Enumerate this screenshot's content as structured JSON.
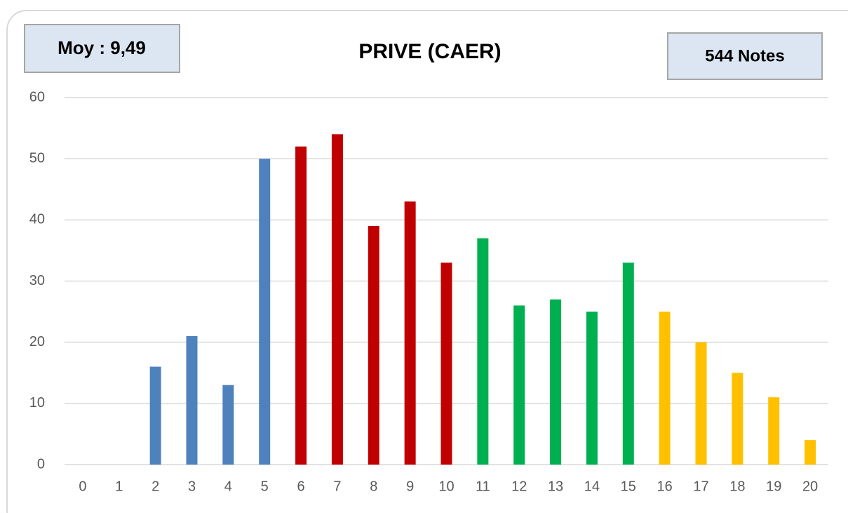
{
  "chart_data": {
    "type": "bar",
    "title": "PRIVE (CAER)",
    "annotations": [
      "Moy : 9,49",
      "544 Notes"
    ],
    "categories": [
      "0",
      "1",
      "2",
      "3",
      "4",
      "5",
      "6",
      "7",
      "8",
      "9",
      "10",
      "11",
      "12",
      "13",
      "14",
      "15",
      "16",
      "17",
      "18",
      "19",
      "20"
    ],
    "values": [
      0,
      0,
      16,
      21,
      13,
      50,
      52,
      54,
      39,
      43,
      33,
      37,
      26,
      27,
      25,
      33,
      25,
      20,
      15,
      11,
      4
    ],
    "colors": [
      "#4f81bd",
      "#4f81bd",
      "#4f81bd",
      "#4f81bd",
      "#4f81bd",
      "#4f81bd",
      "#c00000",
      "#c00000",
      "#c00000",
      "#c00000",
      "#c00000",
      "#00b050",
      "#00b050",
      "#00b050",
      "#00b050",
      "#00b050",
      "#ffc000",
      "#ffc000",
      "#ffc000",
      "#ffc000",
      "#ffc000"
    ],
    "ylim": [
      0,
      60
    ],
    "yticks": [
      0,
      10,
      20,
      30,
      40,
      50,
      60
    ],
    "grid": true
  }
}
